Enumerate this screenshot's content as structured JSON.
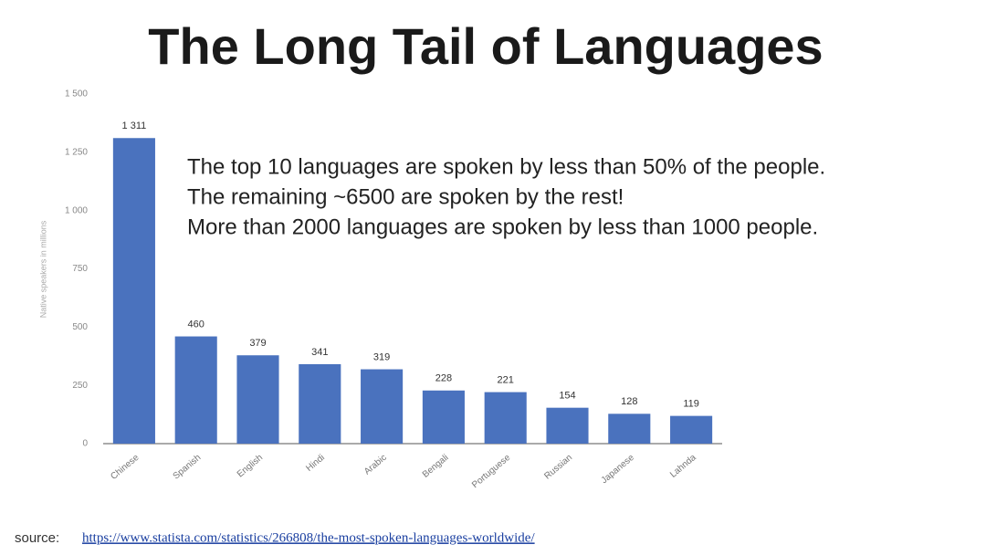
{
  "chart_data": {
    "type": "bar",
    "title": "The Long Tail of Languages",
    "y_label": "Native speakers in millions",
    "categories": [
      "Chinese",
      "Spanish",
      "English",
      "Hindi",
      "Arabic",
      "Bengali",
      "Portuguese",
      "Russian",
      "Japanese",
      "Lahnda"
    ],
    "values": [
      1311,
      460,
      379,
      341,
      319,
      228,
      221,
      154,
      128,
      119
    ],
    "value_labels": [
      "1 311",
      "460",
      "379",
      "341",
      "319",
      "228",
      "221",
      "154",
      "128",
      "119"
    ],
    "color": "#4a72be",
    "ylim": [
      0,
      1500
    ],
    "yticks": [
      0,
      250,
      500,
      750,
      {
        "value": 1000,
        "label": "1 000"
      },
      {
        "value": 1250,
        "label": "1 250"
      },
      {
        "value": 1500,
        "label": "1 500"
      }
    ],
    "grid": false,
    "annotations": [
      "The top 10 languages are spoken by less than 50% of the people.",
      "The remaining ~6500 are spoken by the rest!",
      "More than 2000 languages are spoken by less than 1000 people."
    ],
    "source_label": "source:",
    "source_url": "https://www.statista.com/statistics/266808/the-most-spoken-languages-worldwide/"
  }
}
